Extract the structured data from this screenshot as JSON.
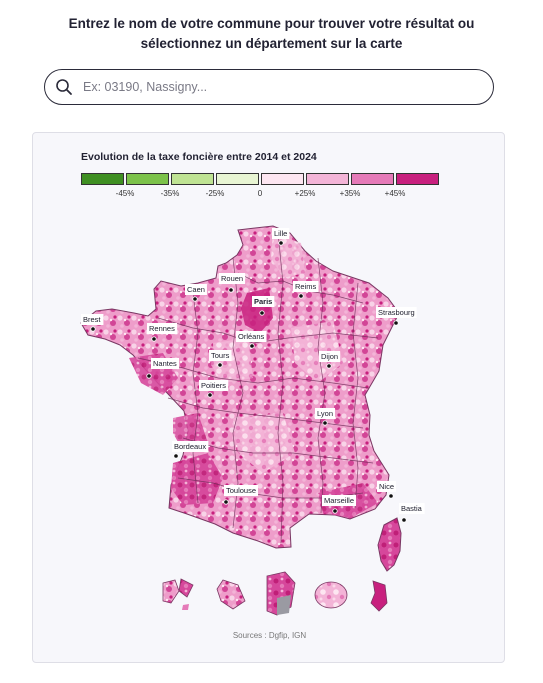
{
  "heading": {
    "line1": "Entrez le nom de votre commune pour trouver votre résultat ou",
    "line2": "sélectionnez un département sur la carte"
  },
  "search": {
    "placeholder": "Ex: 03190, Nassigny...",
    "value": "",
    "icon": "search-icon"
  },
  "legend": {
    "title": "Evolution de la taxe foncière entre 2014 et 2024",
    "colors": [
      "#3f8f22",
      "#7cc24a",
      "#bfe393",
      "#e8f5d3",
      "#fde6f1",
      "#f3b4d7",
      "#e57ab8",
      "#c8207e"
    ],
    "ticks": [
      "-45%",
      "-35%",
      "-25%",
      "0",
      "+25%",
      "+35%",
      "+45%"
    ]
  },
  "map": {
    "cities": [
      {
        "name": "Lille",
        "bold": false
      },
      {
        "name": "Rouen",
        "bold": false
      },
      {
        "name": "Caen",
        "bold": false
      },
      {
        "name": "Reims",
        "bold": false
      },
      {
        "name": "Paris",
        "bold": true
      },
      {
        "name": "Strasbourg",
        "bold": false
      },
      {
        "name": "Brest",
        "bold": false
      },
      {
        "name": "Rennes",
        "bold": false
      },
      {
        "name": "Orléans",
        "bold": false
      },
      {
        "name": "Nantes",
        "bold": false
      },
      {
        "name": "Tours",
        "bold": false
      },
      {
        "name": "Dijon",
        "bold": false
      },
      {
        "name": "Poitiers",
        "bold": false
      },
      {
        "name": "Lyon",
        "bold": false
      },
      {
        "name": "Bordeaux",
        "bold": false
      },
      {
        "name": "Toulouse",
        "bold": false
      },
      {
        "name": "Nice",
        "bold": false
      },
      {
        "name": "Marseille",
        "bold": false
      },
      {
        "name": "Bastia",
        "bold": false
      }
    ],
    "overseas": [
      "guadeloupe-inset",
      "martinique-inset",
      "guyane-inset",
      "reunion-inset",
      "mayotte-inset"
    ]
  },
  "source": "Sources : Dgfip, IGN"
}
